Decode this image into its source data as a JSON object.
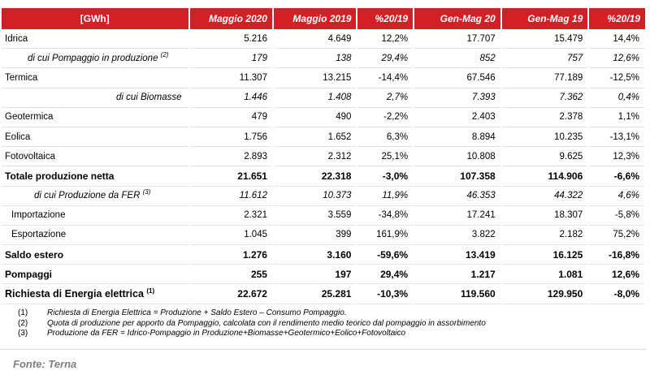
{
  "header": [
    "[GWh]",
    "Maggio 2020",
    "Maggio 2019",
    "%20/19",
    "Gen-Mag 20",
    "Gen-Mag 19",
    "%20/19"
  ],
  "rows": [
    {
      "label": "Idrica",
      "sup": "",
      "values": [
        "5.216",
        "4.649",
        "12,2%",
        "17.707",
        "15.479",
        "14,4%"
      ]
    },
    {
      "label": "di cui Pompaggio in produzione",
      "sup": "(2)",
      "values": [
        "179",
        "138",
        "29,4%",
        "852",
        "757",
        "12,6%"
      ]
    },
    {
      "label": "Termica",
      "sup": "",
      "values": [
        "11.307",
        "13.215",
        "-14,4%",
        "67.546",
        "77.189",
        "-12,5%"
      ]
    },
    {
      "label": "di cui Biomasse",
      "sup": "",
      "values": [
        "1.446",
        "1.408",
        "2,7%",
        "7.393",
        "7.362",
        "0,4%"
      ]
    },
    {
      "label": "Geotermica",
      "sup": "",
      "values": [
        "479",
        "490",
        "-2,2%",
        "2.403",
        "2.378",
        "1,1%"
      ]
    },
    {
      "label": "Eolica",
      "sup": "",
      "values": [
        "1.756",
        "1.652",
        "6,3%",
        "8.894",
        "10.235",
        "-13,1%"
      ]
    },
    {
      "label": "Fotovoltaica",
      "sup": "",
      "values": [
        "2.893",
        "2.312",
        "25,1%",
        "10.808",
        "9.625",
        "12,3%"
      ]
    },
    {
      "label": "Totale produzione netta",
      "sup": "",
      "values": [
        "21.651",
        "22.318",
        "-3,0%",
        "107.358",
        "114.906",
        "-6,6%"
      ]
    },
    {
      "label": "di cui Produzione da FER",
      "sup": "(3)",
      "values": [
        "11.612",
        "10.373",
        "11,9%",
        "46.353",
        "44.322",
        "4,6%"
      ]
    },
    {
      "label": "Importazione",
      "sup": "",
      "values": [
        "2.321",
        "3.559",
        "-34,8%",
        "17.241",
        "18.307",
        "-5,8%"
      ]
    },
    {
      "label": "Esportazione",
      "sup": "",
      "values": [
        "1.045",
        "399",
        "161,9%",
        "3.822",
        "2.182",
        "75,2%"
      ]
    },
    {
      "label": "Saldo estero",
      "sup": "",
      "values": [
        "1.276",
        "3.160",
        "-59,6%",
        "13.419",
        "16.125",
        "-16,8%"
      ]
    },
    {
      "label": "Pompaggi",
      "sup": "",
      "values": [
        "255",
        "197",
        "29,4%",
        "1.217",
        "1.081",
        "12,6%"
      ]
    },
    {
      "label": "Richiesta di Energia elettrica",
      "sup": "(1)",
      "values": [
        "22.672",
        "25.281",
        "-10,3%",
        "119.560",
        "129.950",
        "-8,0%"
      ]
    }
  ],
  "notes": [
    {
      "n": "(1)",
      "text": "Richiesta di Energia Elettrica = Produzione + Saldo Estero – Consumo Pompaggio."
    },
    {
      "n": "(2)",
      "text": "Quota di produzione per apporto da Pompaggio, calcolata con il rendimento medio teorico dal pompaggio in assorbimento"
    },
    {
      "n": "(3)",
      "text": "Produzione da FER = Idrico-Pompaggio in Produzione+Biomasse+Geotermico+Eolico+Fotovoltaico"
    }
  ],
  "source": "Fonte: Terna",
  "colors": {
    "header_bg": "#d32027",
    "header_text": "#ffffff",
    "source_text": "#7f7f7f"
  }
}
